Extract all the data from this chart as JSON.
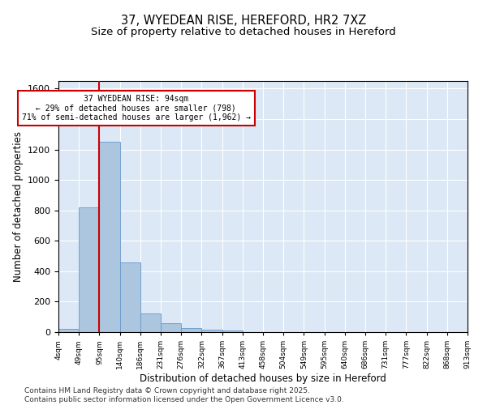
{
  "title1": "37, WYEDEAN RISE, HEREFORD, HR2 7XZ",
  "title2": "Size of property relative to detached houses in Hereford",
  "xlabel": "Distribution of detached houses by size in Hereford",
  "ylabel": "Number of detached properties",
  "bar_values": [
    22,
    820,
    1250,
    460,
    125,
    58,
    25,
    15,
    8,
    0,
    0,
    0,
    0,
    0,
    0,
    0,
    0,
    0,
    0,
    0
  ],
  "categories": [
    "4sqm",
    "49sqm",
    "95sqm",
    "140sqm",
    "186sqm",
    "231sqm",
    "276sqm",
    "322sqm",
    "367sqm",
    "413sqm",
    "458sqm",
    "504sqm",
    "549sqm",
    "595sqm",
    "640sqm",
    "686sqm",
    "731sqm",
    "777sqm",
    "822sqm",
    "868sqm",
    "913sqm"
  ],
  "bar_color": "#adc6e0",
  "bar_edge_color": "#6699cc",
  "vline_color": "#cc0000",
  "annotation_text": "37 WYEDEAN RISE: 94sqm\n← 29% of detached houses are smaller (798)\n71% of semi-detached houses are larger (1,962) →",
  "annotation_box_color": "#cc0000",
  "annotation_fill": "white",
  "ylim": [
    0,
    1650
  ],
  "yticks": [
    0,
    200,
    400,
    600,
    800,
    1000,
    1200,
    1400,
    1600
  ],
  "background_color": "#dce8f5",
  "plot_bg_color": "#dce8f5",
  "footer": "Contains HM Land Registry data © Crown copyright and database right 2025.\nContains public sector information licensed under the Open Government Licence v3.0.",
  "title_fontsize": 10.5,
  "subtitle_fontsize": 9.5,
  "xlabel_fontsize": 8.5,
  "ylabel_fontsize": 8.5,
  "footer_fontsize": 6.5
}
